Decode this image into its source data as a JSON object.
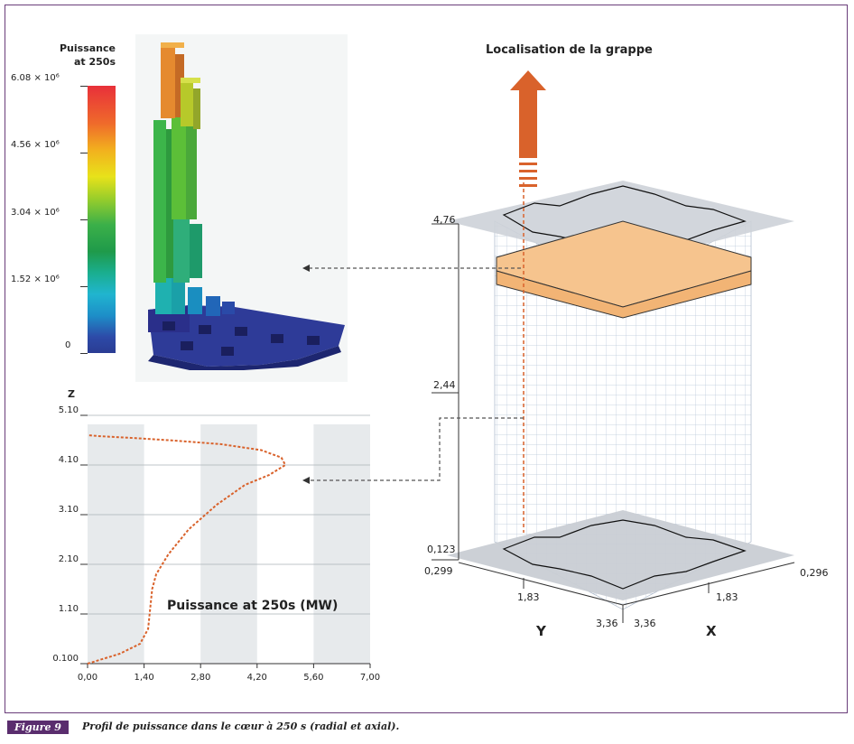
{
  "figure": {
    "tag": "Figure 9",
    "caption": "Profil de puissance dans le cœur à 250 s (radial et axial)."
  },
  "colorbar": {
    "title_line1": "Puissance",
    "title_line2": "at 250s",
    "ticks": [
      "6.08 × 10⁶",
      "4.56 × 10⁶",
      "3.04 × 10⁶",
      "1.52 × 10⁶",
      "0"
    ]
  },
  "core": {
    "arrow_label": "Localisation de la grappe",
    "height_labels": [
      "4,76",
      "2,44",
      "0,123"
    ],
    "left_axis": [
      "0,299",
      "1,83",
      "3,36"
    ],
    "right_axis": [
      "0,296",
      "1,83",
      "3,36"
    ],
    "y_label": "Y",
    "x_label": "X"
  },
  "chart_data": {
    "type": "line",
    "title": "Puissance at 250s (MW)",
    "ylabel": "Z",
    "xlim": [
      0,
      7
    ],
    "ylim": [
      0.1,
      5.1
    ],
    "x_ticks": [
      "0,00",
      "1,40",
      "2,80",
      "4,20",
      "5,60",
      "7,00"
    ],
    "y_ticks": [
      "5.10",
      "4.10",
      "3.10",
      "2.10",
      "1.10",
      "0.100"
    ],
    "series": [
      {
        "color": "#d9622b",
        "x": [
          0.0,
          0.8,
          1.3,
          1.5,
          1.55,
          1.6,
          1.7,
          2.0,
          2.5,
          3.2,
          3.9,
          4.5,
          4.9,
          4.8,
          4.3,
          3.3,
          2.0,
          1.0,
          0.3,
          0.0
        ],
        "y": [
          0.1,
          0.3,
          0.5,
          0.8,
          1.2,
          1.6,
          1.9,
          2.3,
          2.8,
          3.3,
          3.7,
          3.9,
          4.1,
          4.25,
          4.4,
          4.52,
          4.6,
          4.65,
          4.68,
          4.7
        ]
      }
    ]
  }
}
